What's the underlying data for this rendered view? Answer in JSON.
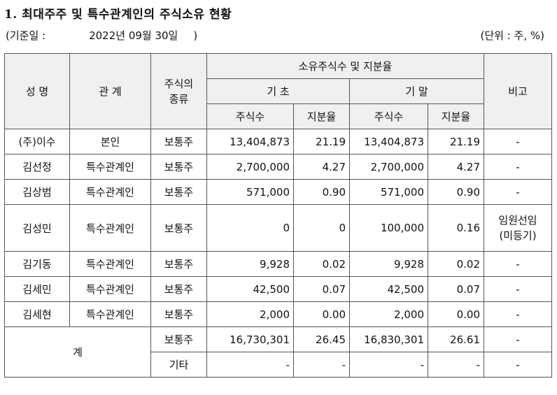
{
  "title": "1. 최대주주 및 특수관계인의 주식소유 현황",
  "basis": {
    "open": "(기준일 :",
    "date": "2022년 09월 30일",
    "close": ")"
  },
  "unit": "(단위 : 주, %)",
  "headers": {
    "name": "성 명",
    "relation": "관 계",
    "stock_type_1": "주식의",
    "stock_type_2": "종류",
    "ownership": "소유주식수 및 지분율",
    "start": "기 초",
    "end": "기 말",
    "shares": "주식수",
    "ratio": "지분율",
    "note": "비고"
  },
  "rows": [
    {
      "name": "(주)이수",
      "relation": "본인",
      "type": "보통주",
      "start_shares": "13,404,873",
      "start_ratio": "21.19",
      "end_shares": "13,404,873",
      "end_ratio": "21.19",
      "note": "-"
    },
    {
      "name": "김선정",
      "relation": "특수관계인",
      "type": "보통주",
      "start_shares": "2,700,000",
      "start_ratio": "4.27",
      "end_shares": "2,700,000",
      "end_ratio": "4.27",
      "note": "-"
    },
    {
      "name": "김상범",
      "relation": "특수관계인",
      "type": "보통주",
      "start_shares": "571,000",
      "start_ratio": "0.90",
      "end_shares": "571,000",
      "end_ratio": "0.90",
      "note": "-"
    },
    {
      "name": "김성민",
      "relation": "특수관계인",
      "type": "보통주",
      "start_shares": "0",
      "start_ratio": "0",
      "end_shares": "100,000",
      "end_ratio": "0.16",
      "note_1": "임원선임",
      "note_2": "(미등기)"
    },
    {
      "name": "김기동",
      "relation": "특수관계인",
      "type": "보통주",
      "start_shares": "9,928",
      "start_ratio": "0.02",
      "end_shares": "9,928",
      "end_ratio": "0.02",
      "note": "-"
    },
    {
      "name": "김세민",
      "relation": "특수관계인",
      "type": "보통주",
      "start_shares": "42,500",
      "start_ratio": "0.07",
      "end_shares": "42,500",
      "end_ratio": "0.07",
      "note": "-"
    },
    {
      "name": "김세현",
      "relation": "특수관계인",
      "type": "보통주",
      "start_shares": "2,000",
      "start_ratio": "0.00",
      "end_shares": "2,000",
      "end_ratio": "0.00",
      "note": "-"
    }
  ],
  "total": {
    "label": "계",
    "common": {
      "type": "보통주",
      "start_shares": "16,730,301",
      "start_ratio": "26.45",
      "end_shares": "16,830,301",
      "end_ratio": "26.61",
      "note": "-"
    },
    "other": {
      "type": "기타",
      "start_shares": "-",
      "start_ratio": "-",
      "end_shares": "-",
      "end_ratio": "-",
      "note": "-"
    }
  }
}
